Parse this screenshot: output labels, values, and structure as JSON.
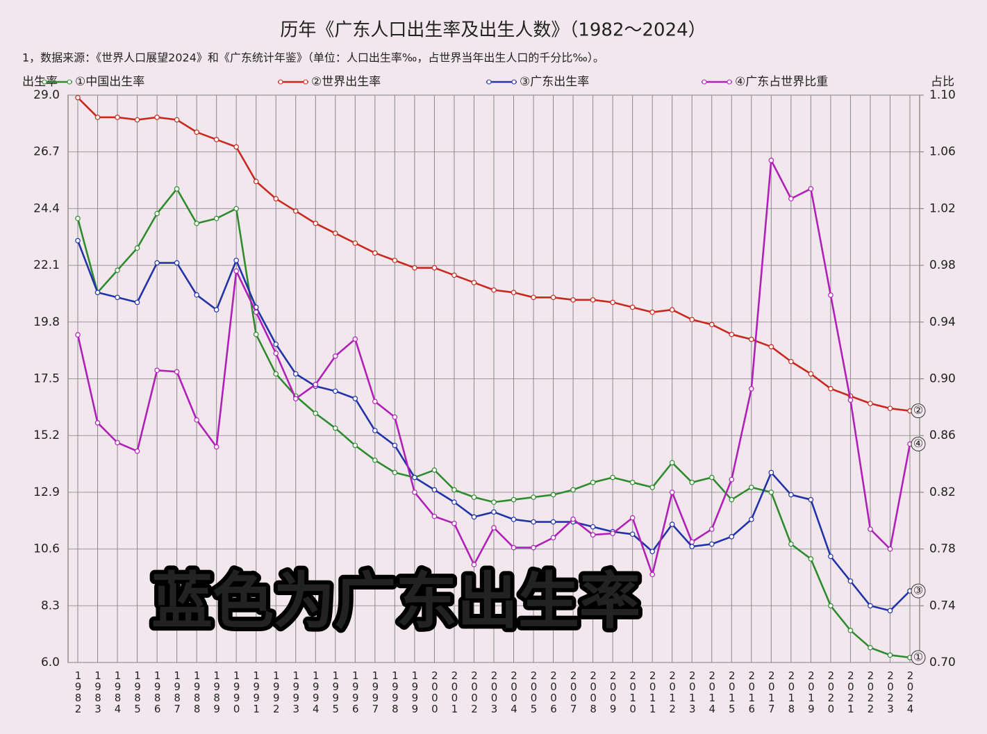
{
  "chart_data": {
    "type": "line",
    "title": "历年《广东人口出生率及出生人数》（1982～2024）",
    "subtitle": "1，数据来源：《世界人口展望2024》和《广东统计年鉴》（单位：人口出生率‰，占世界当年出生人口的千分比‰）。",
    "y_label": "出生率",
    "y2_label": "占比",
    "annotation": "蓝色为广东出生率",
    "grid": true,
    "categories": [
      "1982",
      "1983",
      "1984",
      "1985",
      "1986",
      "1987",
      "1988",
      "1989",
      "1990",
      "1991",
      "1992",
      "1993",
      "1994",
      "1995",
      "1996",
      "1997",
      "1998",
      "1999",
      "2000",
      "2001",
      "2002",
      "2003",
      "2004",
      "2005",
      "2006",
      "2007",
      "2008",
      "2009",
      "2010",
      "2011",
      "2012",
      "2013",
      "2014",
      "2015",
      "2016",
      "2017",
      "2018",
      "2019",
      "2020",
      "2021",
      "2022",
      "2023",
      "2024"
    ],
    "ylim": [
      6,
      29
    ],
    "yticks": [
      {
        "value": 6,
        "label": "6.0"
      },
      8.3,
      10.6,
      12.9,
      15.2,
      17.5,
      19.8,
      22.1,
      24.4,
      26.7,
      {
        "value": 29,
        "label": "29.0"
      }
    ],
    "y2lim": [
      0.7,
      1.1
    ],
    "y2ticks": [
      {
        "value": 0.7,
        "label": "0.70"
      },
      0.74,
      0.78,
      0.82,
      0.86,
      {
        "value": 0.9,
        "label": "0.90"
      },
      0.94,
      0.98,
      1.02,
      1.06,
      {
        "value": 1.1,
        "label": "1.10"
      }
    ],
    "series": [
      {
        "name": "①中国出生率",
        "end_label": "①",
        "color": "#2e8b2e",
        "values": [
          24.0,
          21.0,
          21.9,
          22.8,
          24.2,
          25.2,
          23.8,
          24.0,
          24.4,
          19.3,
          17.7,
          16.8,
          16.1,
          15.5,
          14.8,
          14.2,
          13.7,
          13.5,
          13.8,
          13.0,
          12.7,
          12.5,
          12.6,
          12.7,
          12.8,
          13.0,
          13.3,
          13.5,
          13.3,
          13.1,
          14.1,
          13.3,
          13.5,
          12.6,
          13.1,
          12.9,
          10.8,
          10.2,
          8.3,
          7.3,
          6.6,
          6.3,
          6.2
        ]
      },
      {
        "name": "②世界出生率",
        "end_label": "②",
        "color": "#c8281e",
        "values": [
          28.9,
          28.1,
          28.1,
          28.0,
          28.1,
          28.0,
          27.5,
          27.2,
          26.9,
          25.5,
          24.8,
          24.3,
          23.8,
          23.4,
          23.0,
          22.6,
          22.3,
          22.0,
          22.0,
          21.7,
          21.4,
          21.1,
          21.0,
          20.8,
          20.8,
          20.7,
          20.7,
          20.6,
          20.4,
          20.2,
          20.3,
          19.9,
          19.7,
          19.3,
          19.1,
          18.8,
          18.2,
          17.7,
          17.1,
          16.8,
          16.5,
          16.3,
          16.2
        ]
      },
      {
        "name": "③广东出生率",
        "end_label": "③",
        "color": "#2233aa",
        "values": [
          23.1,
          21.0,
          20.8,
          20.6,
          22.2,
          22.2,
          20.9,
          20.3,
          22.3,
          20.4,
          18.9,
          17.7,
          17.2,
          17.0,
          16.7,
          15.4,
          14.8,
          13.5,
          13.0,
          12.5,
          11.9,
          12.1,
          11.8,
          11.7,
          11.7,
          11.7,
          11.5,
          11.3,
          11.2,
          10.5,
          11.6,
          10.7,
          10.8,
          11.1,
          11.8,
          13.7,
          12.8,
          12.6,
          10.3,
          9.3,
          8.3,
          8.1,
          8.9
        ]
      },
      {
        "name": "④广东占世界比重",
        "end_label": "④",
        "color": "#b020b8",
        "axis": "y2",
        "values": [
          0.931,
          0.869,
          0.855,
          0.849,
          0.906,
          0.905,
          0.871,
          0.852,
          0.976,
          0.947,
          0.918,
          0.886,
          0.896,
          0.916,
          0.928,
          0.884,
          0.873,
          0.82,
          0.803,
          0.798,
          0.769,
          0.795,
          0.781,
          0.781,
          0.788,
          0.801,
          0.79,
          0.791,
          0.802,
          0.762,
          0.82,
          0.785,
          0.794,
          0.829,
          0.893,
          1.054,
          1.027,
          1.034,
          0.959,
          0.885,
          0.794,
          0.78,
          0.854
        ]
      }
    ]
  }
}
